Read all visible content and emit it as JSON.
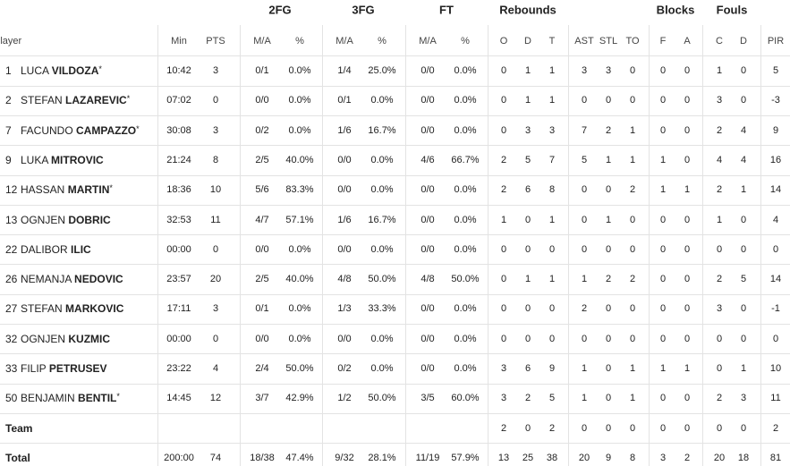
{
  "table": {
    "groups": [
      "2FG",
      "3FG",
      "FT",
      "Rebounds",
      "Blocks",
      "Fouls"
    ],
    "player_header": "Player",
    "columns": [
      "Min",
      "PTS",
      "M/A",
      "%",
      "M/A",
      "%",
      "M/A",
      "%",
      "O",
      "D",
      "T",
      "AST",
      "STL",
      "TO",
      "F",
      "A",
      "C",
      "D",
      "PIR"
    ],
    "rows": [
      {
        "number": 1,
        "first": "LUCA",
        "last": "VILDOZA",
        "mark": "*",
        "cells": [
          "10:42",
          3,
          "0/1",
          "0.0%",
          "1/4",
          "25.0%",
          "0/0",
          "0.0%",
          0,
          1,
          1,
          3,
          3,
          0,
          0,
          0,
          1,
          0,
          5
        ]
      },
      {
        "number": 2,
        "first": "STEFAN",
        "last": "LAZAREVIC",
        "mark": "*",
        "cells": [
          "07:02",
          0,
          "0/0",
          "0.0%",
          "0/1",
          "0.0%",
          "0/0",
          "0.0%",
          0,
          1,
          1,
          0,
          0,
          0,
          0,
          0,
          3,
          0,
          -3
        ]
      },
      {
        "number": 7,
        "first": "FACUNDO",
        "last": "CAMPAZZO",
        "mark": "*",
        "cells": [
          "30:08",
          3,
          "0/2",
          "0.0%",
          "1/6",
          "16.7%",
          "0/0",
          "0.0%",
          0,
          3,
          3,
          7,
          2,
          1,
          0,
          0,
          2,
          4,
          9
        ]
      },
      {
        "number": 9,
        "first": "LUKA",
        "last": "MITROVIC",
        "mark": null,
        "cells": [
          "21:24",
          8,
          "2/5",
          "40.0%",
          "0/0",
          "0.0%",
          "4/6",
          "66.7%",
          2,
          5,
          7,
          5,
          1,
          1,
          1,
          0,
          4,
          4,
          16
        ]
      },
      {
        "number": 12,
        "first": "HASSAN",
        "last": "MARTIN",
        "mark": "*",
        "cells": [
          "18:36",
          10,
          "5/6",
          "83.3%",
          "0/0",
          "0.0%",
          "0/0",
          "0.0%",
          2,
          6,
          8,
          0,
          0,
          2,
          1,
          1,
          2,
          1,
          14
        ]
      },
      {
        "number": 13,
        "first": "OGNJEN",
        "last": "DOBRIC",
        "mark": null,
        "cells": [
          "32:53",
          11,
          "4/7",
          "57.1%",
          "1/6",
          "16.7%",
          "0/0",
          "0.0%",
          1,
          0,
          1,
          0,
          1,
          0,
          0,
          0,
          1,
          0,
          4
        ]
      },
      {
        "number": 22,
        "first": "DALIBOR",
        "last": "ILIC",
        "mark": null,
        "cells": [
          "00:00",
          0,
          "0/0",
          "0.0%",
          "0/0",
          "0.0%",
          "0/0",
          "0.0%",
          0,
          0,
          0,
          0,
          0,
          0,
          0,
          0,
          0,
          0,
          0
        ]
      },
      {
        "number": 26,
        "first": "NEMANJA",
        "last": "NEDOVIC",
        "mark": null,
        "cells": [
          "23:57",
          20,
          "2/5",
          "40.0%",
          "4/8",
          "50.0%",
          "4/8",
          "50.0%",
          0,
          1,
          1,
          1,
          2,
          2,
          0,
          0,
          2,
          5,
          14
        ]
      },
      {
        "number": 27,
        "first": "STEFAN",
        "last": "MARKOVIC",
        "mark": null,
        "cells": [
          "17:11",
          3,
          "0/1",
          "0.0%",
          "1/3",
          "33.3%",
          "0/0",
          "0.0%",
          0,
          0,
          0,
          2,
          0,
          0,
          0,
          0,
          3,
          0,
          -1
        ]
      },
      {
        "number": 32,
        "first": "OGNJEN",
        "last": "KUZMIC",
        "mark": null,
        "cells": [
          "00:00",
          0,
          "0/0",
          "0.0%",
          "0/0",
          "0.0%",
          "0/0",
          "0.0%",
          0,
          0,
          0,
          0,
          0,
          0,
          0,
          0,
          0,
          0,
          0
        ]
      },
      {
        "number": 33,
        "first": "FILIP",
        "last": "PETRUSEV",
        "mark": null,
        "cells": [
          "23:22",
          4,
          "2/4",
          "50.0%",
          "0/2",
          "0.0%",
          "0/0",
          "0.0%",
          3,
          6,
          9,
          1,
          0,
          1,
          1,
          1,
          0,
          1,
          10
        ]
      },
      {
        "number": 50,
        "first": "BENJAMIN",
        "last": "BENTIL",
        "mark": "*",
        "cells": [
          "14:45",
          12,
          "3/7",
          "42.9%",
          "1/2",
          "50.0%",
          "3/5",
          "60.0%",
          3,
          2,
          5,
          1,
          0,
          1,
          0,
          0,
          2,
          3,
          11
        ]
      }
    ],
    "team": {
      "label": "Team",
      "cells": [
        null,
        null,
        null,
        null,
        null,
        null,
        null,
        null,
        2,
        0,
        2,
        0,
        0,
        0,
        0,
        0,
        0,
        0,
        2
      ]
    },
    "total": {
      "label": "Total",
      "cells": [
        "200:00",
        74,
        "18/38",
        "47.4%",
        "9/32",
        "28.1%",
        "11/19",
        "57.9%",
        13,
        25,
        38,
        20,
        9,
        8,
        3,
        2,
        20,
        18,
        81
      ]
    }
  }
}
